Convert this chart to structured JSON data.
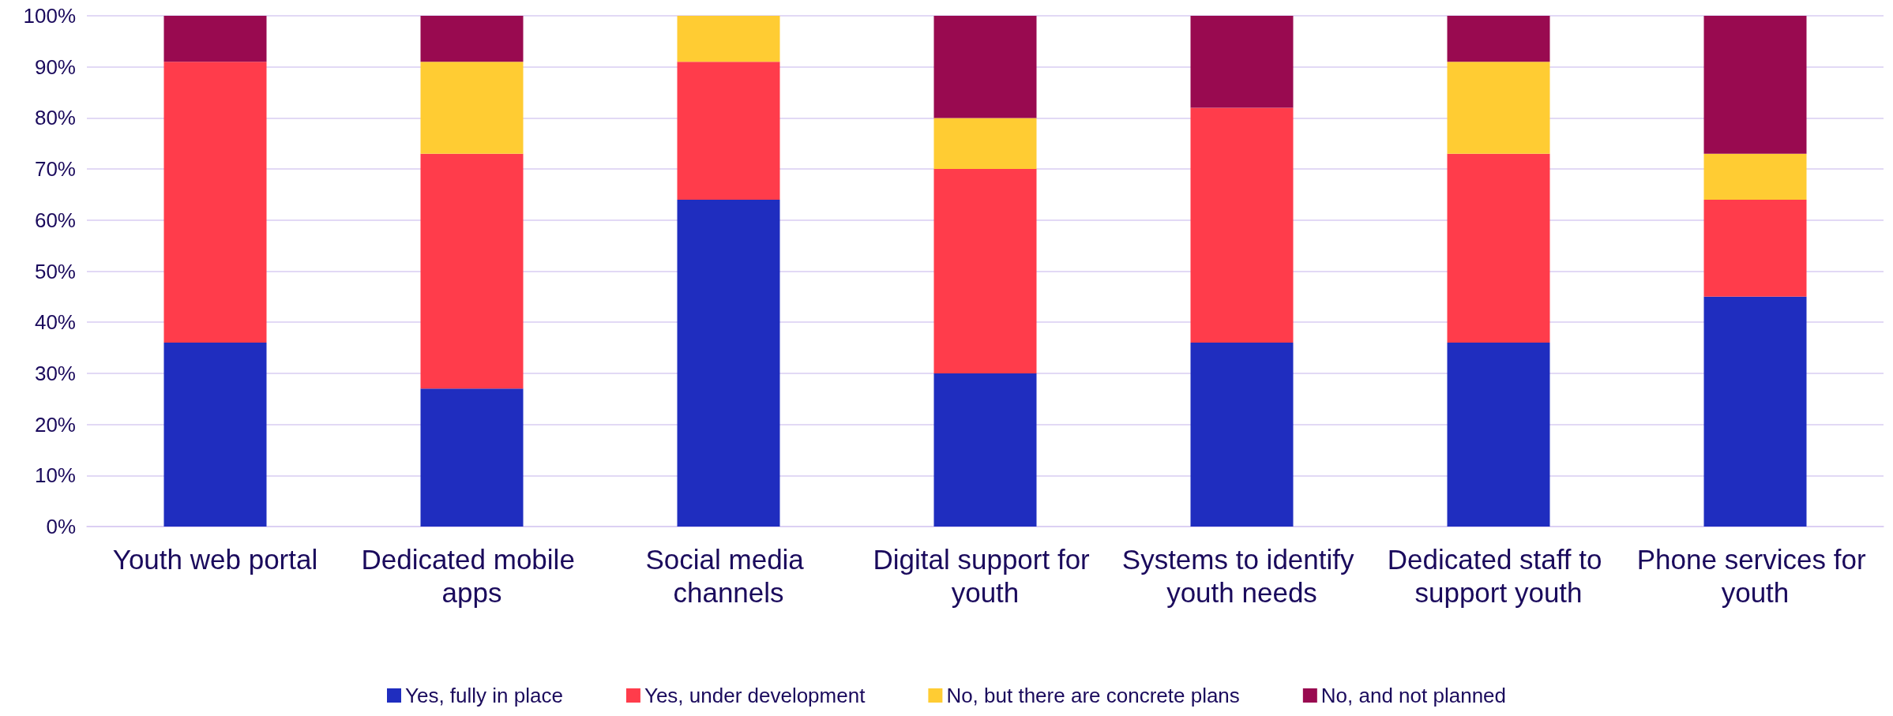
{
  "chart_data": {
    "type": "bar",
    "stacked": true,
    "categories": [
      "Youth web portal",
      "Dedicated mobile apps",
      "Social media channels",
      "Digital support for youth",
      "Systems to identify youth needs",
      "Dedicated staff to support youth",
      "Phone services for youth"
    ],
    "series": [
      {
        "name": "Yes, fully in place",
        "color": "#1f2dbf",
        "values": [
          36,
          27,
          64,
          30,
          36,
          36,
          45
        ]
      },
      {
        "name": "Yes, under development",
        "color": "#ff3c4b",
        "values": [
          55,
          46,
          27,
          40,
          46,
          37,
          19
        ]
      },
      {
        "name": "No, but there are concrete plans",
        "color": "#ffcc33",
        "values": [
          0,
          18,
          9,
          10,
          0,
          18,
          9
        ]
      },
      {
        "name": "No, and not planned",
        "color": "#990a50",
        "values": [
          9,
          9,
          0,
          20,
          18,
          9,
          27
        ]
      }
    ],
    "ylim": [
      0,
      100
    ],
    "yticks": [
      {
        "value": 0,
        "label": "0%"
      },
      {
        "value": 10,
        "label": "10%"
      },
      {
        "value": 20,
        "label": "20%"
      },
      {
        "value": 30,
        "label": "30%"
      },
      {
        "value": 40,
        "label": "40%"
      },
      {
        "value": 50,
        "label": "50%"
      },
      {
        "value": 60,
        "label": "60%"
      },
      {
        "value": 70,
        "label": "70%"
      },
      {
        "value": 80,
        "label": "80%"
      },
      {
        "value": 90,
        "label": "90%"
      },
      {
        "value": 100,
        "label": "100%"
      }
    ],
    "grid": "y",
    "legend": "bottom"
  }
}
